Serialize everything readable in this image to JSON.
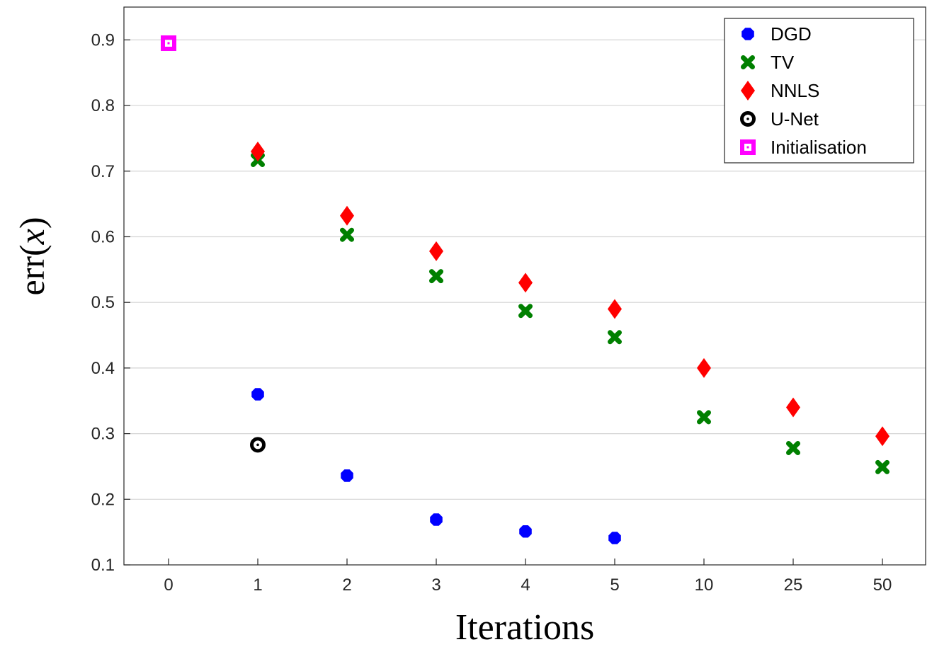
{
  "chart_data": {
    "type": "scatter",
    "x_axis_type": "categorical",
    "categories": [
      "0",
      "1",
      "2",
      "3",
      "4",
      "5",
      "10",
      "25",
      "50"
    ],
    "xlabel": "Iterations",
    "ylabel": "err(x)",
    "ylim": [
      0.1,
      0.95
    ],
    "yticks": [
      0.1,
      0.2,
      0.3,
      0.4,
      0.5,
      0.6,
      0.7,
      0.8,
      0.9
    ],
    "ytick_labels": [
      "0.1",
      "0.2",
      "0.3",
      "0.4",
      "0.5",
      "0.6",
      "0.7",
      "0.8",
      "0.9"
    ],
    "grid": "horizontal",
    "legend_position": "top-right",
    "series": [
      {
        "name": "DGD",
        "marker": "octagon",
        "color": "#0000ff",
        "points": [
          [
            "1",
            0.36
          ],
          [
            "2",
            0.236
          ],
          [
            "3",
            0.169
          ],
          [
            "4",
            0.151
          ],
          [
            "5",
            0.141
          ]
        ]
      },
      {
        "name": "TV",
        "marker": "cross",
        "color": "#008000",
        "points": [
          [
            "1",
            0.717
          ],
          [
            "2",
            0.603
          ],
          [
            "3",
            0.54
          ],
          [
            "4",
            0.487
          ],
          [
            "5",
            0.447
          ],
          [
            "10",
            0.325
          ],
          [
            "25",
            0.278
          ],
          [
            "50",
            0.249
          ]
        ]
      },
      {
        "name": "NNLS",
        "marker": "diamond",
        "color": "#ff0000",
        "points": [
          [
            "1",
            0.73
          ],
          [
            "2",
            0.632
          ],
          [
            "3",
            0.578
          ],
          [
            "4",
            0.53
          ],
          [
            "5",
            0.49
          ],
          [
            "10",
            0.4
          ],
          [
            "25",
            0.34
          ],
          [
            "50",
            0.296
          ]
        ]
      },
      {
        "name": "U-Net",
        "marker": "ring",
        "color": "#000000",
        "points": [
          [
            "1",
            0.283
          ]
        ]
      },
      {
        "name": "Initialisation",
        "marker": "square",
        "color": "#ff00ff",
        "points": [
          [
            "0",
            0.895
          ]
        ]
      }
    ]
  }
}
